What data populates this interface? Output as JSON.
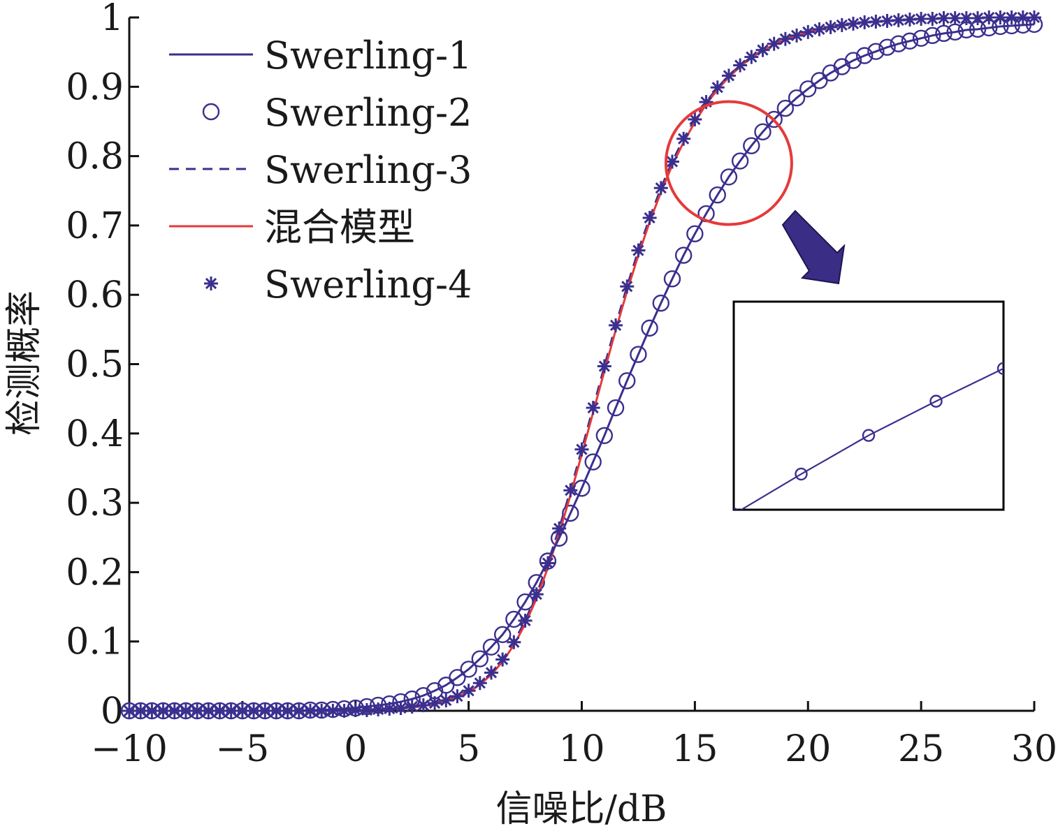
{
  "chart_data": {
    "type": "line",
    "title": "",
    "xlabel": "信噪比/dB",
    "ylabel": "检测概率",
    "xlim": [
      -10,
      30
    ],
    "ylim": [
      0,
      1
    ],
    "x_ticks": [
      -10,
      -5,
      0,
      5,
      10,
      15,
      20,
      25,
      30
    ],
    "x_tick_labels": [
      "−10",
      "−5",
      "0",
      "5",
      "10",
      "15",
      "20",
      "25",
      "30"
    ],
    "y_ticks": [
      0,
      0.1,
      0.2,
      0.3,
      0.4,
      0.5,
      0.6,
      0.7,
      0.8,
      0.9,
      1
    ],
    "y_tick_labels": [
      "0",
      "0.1",
      "0.2",
      "0.3",
      "0.4",
      "0.5",
      "0.6",
      "0.7",
      "0.8",
      "0.9",
      "1"
    ],
    "grid": false,
    "legend_position": "top-left",
    "colors": {
      "navy": "#3a2f8e",
      "red": "#e53a3a",
      "arrow": "#3a2d86",
      "axis": "#111111"
    },
    "x": [
      -10,
      -9.5,
      -9,
      -8.5,
      -8,
      -7.5,
      -7,
      -6.5,
      -6,
      -5.5,
      -5,
      -4.5,
      -4,
      -3.5,
      -3,
      -2.5,
      -2,
      -1.5,
      -1,
      -0.5,
      0,
      0.5,
      1,
      1.5,
      2,
      2.5,
      3,
      3.5,
      4,
      4.5,
      5,
      5.5,
      6,
      6.5,
      7,
      7.5,
      8,
      8.5,
      9,
      9.5,
      10,
      10.5,
      11,
      11.5,
      12,
      12.5,
      13,
      13.5,
      14,
      14.5,
      15,
      15.5,
      16,
      16.5,
      17,
      17.5,
      18,
      18.5,
      19,
      19.5,
      20,
      20.5,
      21,
      21.5,
      22,
      22.5,
      23,
      23.5,
      24,
      24.5,
      25,
      25.5,
      26,
      26.5,
      27,
      27.5,
      28,
      28.5,
      29,
      29.5,
      30
    ],
    "series": [
      {
        "name": "Swerling-1",
        "style": "solid",
        "color": "#3a2f8e",
        "values": [
          0,
          0,
          0,
          0,
          0,
          0,
          0,
          0,
          0,
          0,
          0,
          0,
          0,
          0,
          0,
          0,
          0.001,
          0.001,
          0.002,
          0.003,
          0.004,
          0.006,
          0.008,
          0.01,
          0.013,
          0.017,
          0.022,
          0.029,
          0.037,
          0.048,
          0.06,
          0.075,
          0.092,
          0.11,
          0.132,
          0.157,
          0.185,
          0.216,
          0.249,
          0.285,
          0.321,
          0.359,
          0.397,
          0.437,
          0.476,
          0.514,
          0.552,
          0.588,
          0.623,
          0.657,
          0.688,
          0.717,
          0.744,
          0.77,
          0.793,
          0.815,
          0.835,
          0.853,
          0.869,
          0.884,
          0.897,
          0.909,
          0.92,
          0.929,
          0.938,
          0.945,
          0.951,
          0.957,
          0.962,
          0.966,
          0.97,
          0.974,
          0.977,
          0.979,
          0.982,
          0.983,
          0.985,
          0.987,
          0.988,
          0.989,
          0.99
        ]
      },
      {
        "name": "Swerling-2",
        "style": "markers-circle",
        "color": "#3a2f8e",
        "values": [
          0,
          0,
          0,
          0,
          0,
          0,
          0,
          0,
          0,
          0,
          0,
          0,
          0,
          0,
          0,
          0,
          0.001,
          0.001,
          0.002,
          0.003,
          0.004,
          0.006,
          0.008,
          0.01,
          0.013,
          0.017,
          0.022,
          0.029,
          0.037,
          0.048,
          0.06,
          0.075,
          0.092,
          0.11,
          0.132,
          0.157,
          0.185,
          0.216,
          0.249,
          0.285,
          0.321,
          0.359,
          0.397,
          0.437,
          0.476,
          0.514,
          0.552,
          0.588,
          0.623,
          0.657,
          0.688,
          0.717,
          0.744,
          0.77,
          0.793,
          0.815,
          0.835,
          0.853,
          0.869,
          0.884,
          0.897,
          0.909,
          0.92,
          0.929,
          0.938,
          0.945,
          0.951,
          0.957,
          0.962,
          0.966,
          0.97,
          0.974,
          0.977,
          0.979,
          0.982,
          0.983,
          0.985,
          0.987,
          0.988,
          0.989,
          0.99
        ]
      },
      {
        "name": "Swerling-3",
        "style": "dashed",
        "color": "#3a2f8e",
        "values": [
          0,
          0,
          0,
          0,
          0,
          0,
          0,
          0,
          0,
          0,
          0,
          0,
          0,
          0,
          0,
          0,
          0,
          0,
          0,
          0,
          0.001,
          0.001,
          0.002,
          0.003,
          0.004,
          0.006,
          0.008,
          0.011,
          0.015,
          0.021,
          0.029,
          0.04,
          0.055,
          0.074,
          0.099,
          0.13,
          0.168,
          0.213,
          0.263,
          0.318,
          0.377,
          0.437,
          0.497,
          0.556,
          0.612,
          0.664,
          0.711,
          0.754,
          0.792,
          0.825,
          0.853,
          0.878,
          0.899,
          0.916,
          0.931,
          0.943,
          0.953,
          0.962,
          0.969,
          0.974,
          0.979,
          0.983,
          0.986,
          0.989,
          0.991,
          0.993,
          0.994,
          0.995,
          0.996,
          0.997,
          0.998,
          0.998,
          0.999,
          0.999,
          0.999,
          0.999,
          1,
          1,
          1,
          1,
          1
        ]
      },
      {
        "name": "混合模型",
        "style": "solid",
        "color": "#e53a3a",
        "values": [
          0,
          0,
          0,
          0,
          0,
          0,
          0,
          0,
          0,
          0,
          0,
          0,
          0,
          0,
          0,
          0,
          0,
          0,
          0,
          0,
          0.001,
          0.001,
          0.002,
          0.003,
          0.004,
          0.005,
          0.007,
          0.01,
          0.014,
          0.02,
          0.027,
          0.038,
          0.052,
          0.071,
          0.095,
          0.125,
          0.162,
          0.206,
          0.256,
          0.311,
          0.37,
          0.43,
          0.49,
          0.549,
          0.605,
          0.657,
          0.705,
          0.748,
          0.787,
          0.82,
          0.849,
          0.875,
          0.896,
          0.914,
          0.929,
          0.942,
          0.952,
          0.961,
          0.968,
          0.974,
          0.979,
          0.983,
          0.986,
          0.989,
          0.991,
          0.993,
          0.994,
          0.995,
          0.996,
          0.997,
          0.998,
          0.998,
          0.999,
          0.999,
          0.999,
          0.999,
          1,
          1,
          1,
          1,
          1
        ]
      },
      {
        "name": "Swerling-4",
        "style": "markers-star",
        "color": "#3a2f8e",
        "values": [
          0,
          0,
          0,
          0,
          0,
          0,
          0,
          0,
          0,
          0,
          0,
          0,
          0,
          0,
          0,
          0,
          0,
          0,
          0,
          0,
          0.001,
          0.001,
          0.002,
          0.003,
          0.004,
          0.006,
          0.008,
          0.011,
          0.015,
          0.021,
          0.029,
          0.04,
          0.055,
          0.074,
          0.099,
          0.13,
          0.168,
          0.213,
          0.263,
          0.318,
          0.377,
          0.437,
          0.497,
          0.556,
          0.612,
          0.664,
          0.711,
          0.754,
          0.792,
          0.825,
          0.853,
          0.878,
          0.899,
          0.916,
          0.931,
          0.943,
          0.953,
          0.962,
          0.969,
          0.974,
          0.979,
          0.983,
          0.986,
          0.989,
          0.991,
          0.993,
          0.994,
          0.995,
          0.996,
          0.997,
          0.998,
          0.998,
          0.999,
          0.999,
          0.999,
          0.999,
          1,
          1,
          1,
          1,
          1
        ]
      }
    ],
    "highlight_circle": {
      "x": 16.5,
      "y": 0.79
    },
    "inset": {
      "xlim": [
        15.5,
        17.5
      ],
      "ylim": [
        0.72,
        0.86
      ]
    }
  }
}
